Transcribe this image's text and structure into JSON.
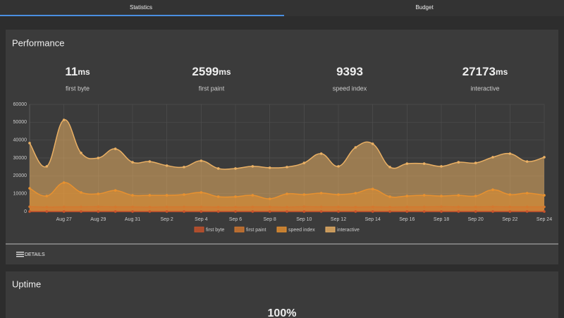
{
  "tabs": [
    "Statistics",
    "Budget"
  ],
  "performance": {
    "title": "Performance",
    "stats": [
      {
        "value": "11",
        "unit": "ms",
        "label": "first byte"
      },
      {
        "value": "2599",
        "unit": "ms",
        "label": "first paint"
      },
      {
        "value": "9393",
        "label": "speed index"
      },
      {
        "value": "27173",
        "unit": "ms",
        "label": "interactive"
      }
    ],
    "details": "DETAILS"
  },
  "chart_data": {
    "type": "line",
    "fill": true,
    "grid": true,
    "legend": "bottom",
    "categories": [
      null,
      null,
      "Aug 27",
      null,
      "Aug 29",
      null,
      "Aug 31",
      null,
      "Sep 2",
      null,
      "Sep 4",
      null,
      "Sep 6",
      null,
      "Sep 8",
      null,
      "Sep 10",
      null,
      "Sep 12",
      null,
      "Sep 14",
      null,
      "Sep 16",
      null,
      "Sep 18",
      null,
      "Sep 20",
      null,
      "Sep 22",
      null,
      "Sep 24"
    ],
    "ylim": [
      0,
      60000
    ],
    "yticks": [
      0,
      10000,
      20000,
      30000,
      40000,
      50000,
      60000
    ],
    "series": [
      {
        "name": "first byte",
        "color": "#c9532b",
        "values": [
          11,
          10,
          12,
          11,
          11,
          12,
          11,
          10,
          11,
          11,
          12,
          11,
          10,
          11,
          11,
          12,
          11,
          11,
          10,
          11,
          12,
          11,
          11,
          10,
          11,
          11,
          12,
          11,
          11,
          10,
          11
        ]
      },
      {
        "name": "first paint",
        "color": "#d4782f",
        "values": [
          2700,
          2500,
          2600,
          2600,
          2700,
          2600,
          2600,
          2500,
          2600,
          2600,
          2600,
          2500,
          2500,
          2600,
          2600,
          2500,
          2700,
          2600,
          2600,
          2500,
          2600,
          2500,
          2600,
          2600,
          2700,
          2600,
          2600,
          2700,
          2600,
          2600,
          2600
        ]
      },
      {
        "name": "speed index",
        "color": "#e8912f",
        "values": [
          13000,
          8700,
          16200,
          10700,
          9900,
          11800,
          9100,
          9100,
          9100,
          9500,
          10700,
          8300,
          8300,
          9100,
          7100,
          9900,
          9500,
          10300,
          9500,
          10300,
          12600,
          8300,
          8700,
          9100,
          8700,
          9100,
          8700,
          12200,
          9500,
          10300,
          9100
        ]
      },
      {
        "name": "interactive",
        "color": "#eab064",
        "values": [
          38300,
          25300,
          51300,
          32800,
          30000,
          35100,
          27600,
          28000,
          25700,
          24900,
          28400,
          24100,
          24100,
          25300,
          24500,
          24900,
          27200,
          32400,
          25300,
          35900,
          37900,
          24900,
          26800,
          26800,
          25300,
          27600,
          27200,
          30400,
          32400,
          28000,
          30400
        ]
      }
    ]
  },
  "uptime": {
    "title": "Uptime",
    "value": "100%"
  }
}
